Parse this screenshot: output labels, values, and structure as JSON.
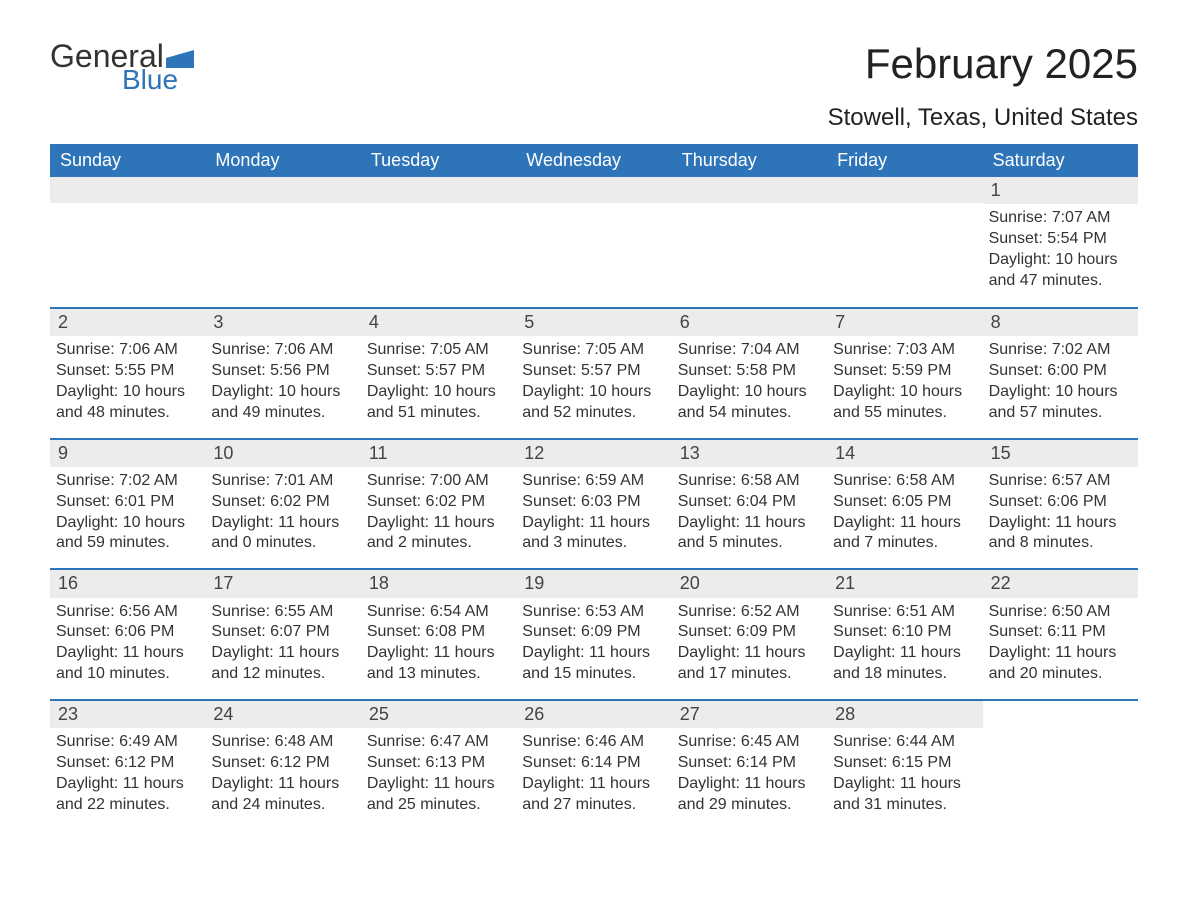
{
  "logo": {
    "text_general": "General",
    "text_blue": "Blue",
    "flag_color": "#2d74b8"
  },
  "title": "February 2025",
  "location": "Stowell, Texas, United States",
  "colors": {
    "header_bg": "#2d74b8",
    "header_text": "#ffffff",
    "row_divider": "#2d74b8",
    "daynum_bg": "#ececec",
    "body_text": "#333333",
    "background": "#ffffff"
  },
  "font": {
    "family": "Arial",
    "title_size_pt": 32,
    "location_size_pt": 18,
    "weekday_size_pt": 14,
    "daynum_size_pt": 14,
    "body_size_pt": 12
  },
  "weekdays": [
    "Sunday",
    "Monday",
    "Tuesday",
    "Wednesday",
    "Thursday",
    "Friday",
    "Saturday"
  ],
  "weeks": [
    [
      {
        "blank": true
      },
      {
        "blank": true
      },
      {
        "blank": true
      },
      {
        "blank": true
      },
      {
        "blank": true
      },
      {
        "blank": true
      },
      {
        "day": "1",
        "sunrise": "Sunrise: 7:07 AM",
        "sunset": "Sunset: 5:54 PM",
        "daylight": "Daylight: 10 hours and 47 minutes."
      }
    ],
    [
      {
        "day": "2",
        "sunrise": "Sunrise: 7:06 AM",
        "sunset": "Sunset: 5:55 PM",
        "daylight": "Daylight: 10 hours and 48 minutes."
      },
      {
        "day": "3",
        "sunrise": "Sunrise: 7:06 AM",
        "sunset": "Sunset: 5:56 PM",
        "daylight": "Daylight: 10 hours and 49 minutes."
      },
      {
        "day": "4",
        "sunrise": "Sunrise: 7:05 AM",
        "sunset": "Sunset: 5:57 PM",
        "daylight": "Daylight: 10 hours and 51 minutes."
      },
      {
        "day": "5",
        "sunrise": "Sunrise: 7:05 AM",
        "sunset": "Sunset: 5:57 PM",
        "daylight": "Daylight: 10 hours and 52 minutes."
      },
      {
        "day": "6",
        "sunrise": "Sunrise: 7:04 AM",
        "sunset": "Sunset: 5:58 PM",
        "daylight": "Daylight: 10 hours and 54 minutes."
      },
      {
        "day": "7",
        "sunrise": "Sunrise: 7:03 AM",
        "sunset": "Sunset: 5:59 PM",
        "daylight": "Daylight: 10 hours and 55 minutes."
      },
      {
        "day": "8",
        "sunrise": "Sunrise: 7:02 AM",
        "sunset": "Sunset: 6:00 PM",
        "daylight": "Daylight: 10 hours and 57 minutes."
      }
    ],
    [
      {
        "day": "9",
        "sunrise": "Sunrise: 7:02 AM",
        "sunset": "Sunset: 6:01 PM",
        "daylight": "Daylight: 10 hours and 59 minutes."
      },
      {
        "day": "10",
        "sunrise": "Sunrise: 7:01 AM",
        "sunset": "Sunset: 6:02 PM",
        "daylight": "Daylight: 11 hours and 0 minutes."
      },
      {
        "day": "11",
        "sunrise": "Sunrise: 7:00 AM",
        "sunset": "Sunset: 6:02 PM",
        "daylight": "Daylight: 11 hours and 2 minutes."
      },
      {
        "day": "12",
        "sunrise": "Sunrise: 6:59 AM",
        "sunset": "Sunset: 6:03 PM",
        "daylight": "Daylight: 11 hours and 3 minutes."
      },
      {
        "day": "13",
        "sunrise": "Sunrise: 6:58 AM",
        "sunset": "Sunset: 6:04 PM",
        "daylight": "Daylight: 11 hours and 5 minutes."
      },
      {
        "day": "14",
        "sunrise": "Sunrise: 6:58 AM",
        "sunset": "Sunset: 6:05 PM",
        "daylight": "Daylight: 11 hours and 7 minutes."
      },
      {
        "day": "15",
        "sunrise": "Sunrise: 6:57 AM",
        "sunset": "Sunset: 6:06 PM",
        "daylight": "Daylight: 11 hours and 8 minutes."
      }
    ],
    [
      {
        "day": "16",
        "sunrise": "Sunrise: 6:56 AM",
        "sunset": "Sunset: 6:06 PM",
        "daylight": "Daylight: 11 hours and 10 minutes."
      },
      {
        "day": "17",
        "sunrise": "Sunrise: 6:55 AM",
        "sunset": "Sunset: 6:07 PM",
        "daylight": "Daylight: 11 hours and 12 minutes."
      },
      {
        "day": "18",
        "sunrise": "Sunrise: 6:54 AM",
        "sunset": "Sunset: 6:08 PM",
        "daylight": "Daylight: 11 hours and 13 minutes."
      },
      {
        "day": "19",
        "sunrise": "Sunrise: 6:53 AM",
        "sunset": "Sunset: 6:09 PM",
        "daylight": "Daylight: 11 hours and 15 minutes."
      },
      {
        "day": "20",
        "sunrise": "Sunrise: 6:52 AM",
        "sunset": "Sunset: 6:09 PM",
        "daylight": "Daylight: 11 hours and 17 minutes."
      },
      {
        "day": "21",
        "sunrise": "Sunrise: 6:51 AM",
        "sunset": "Sunset: 6:10 PM",
        "daylight": "Daylight: 11 hours and 18 minutes."
      },
      {
        "day": "22",
        "sunrise": "Sunrise: 6:50 AM",
        "sunset": "Sunset: 6:11 PM",
        "daylight": "Daylight: 11 hours and 20 minutes."
      }
    ],
    [
      {
        "day": "23",
        "sunrise": "Sunrise: 6:49 AM",
        "sunset": "Sunset: 6:12 PM",
        "daylight": "Daylight: 11 hours and 22 minutes."
      },
      {
        "day": "24",
        "sunrise": "Sunrise: 6:48 AM",
        "sunset": "Sunset: 6:12 PM",
        "daylight": "Daylight: 11 hours and 24 minutes."
      },
      {
        "day": "25",
        "sunrise": "Sunrise: 6:47 AM",
        "sunset": "Sunset: 6:13 PM",
        "daylight": "Daylight: 11 hours and 25 minutes."
      },
      {
        "day": "26",
        "sunrise": "Sunrise: 6:46 AM",
        "sunset": "Sunset: 6:14 PM",
        "daylight": "Daylight: 11 hours and 27 minutes."
      },
      {
        "day": "27",
        "sunrise": "Sunrise: 6:45 AM",
        "sunset": "Sunset: 6:14 PM",
        "daylight": "Daylight: 11 hours and 29 minutes."
      },
      {
        "day": "28",
        "sunrise": "Sunrise: 6:44 AM",
        "sunset": "Sunset: 6:15 PM",
        "daylight": "Daylight: 11 hours and 31 minutes."
      },
      {
        "blank": true,
        "no_strip": true
      }
    ]
  ]
}
